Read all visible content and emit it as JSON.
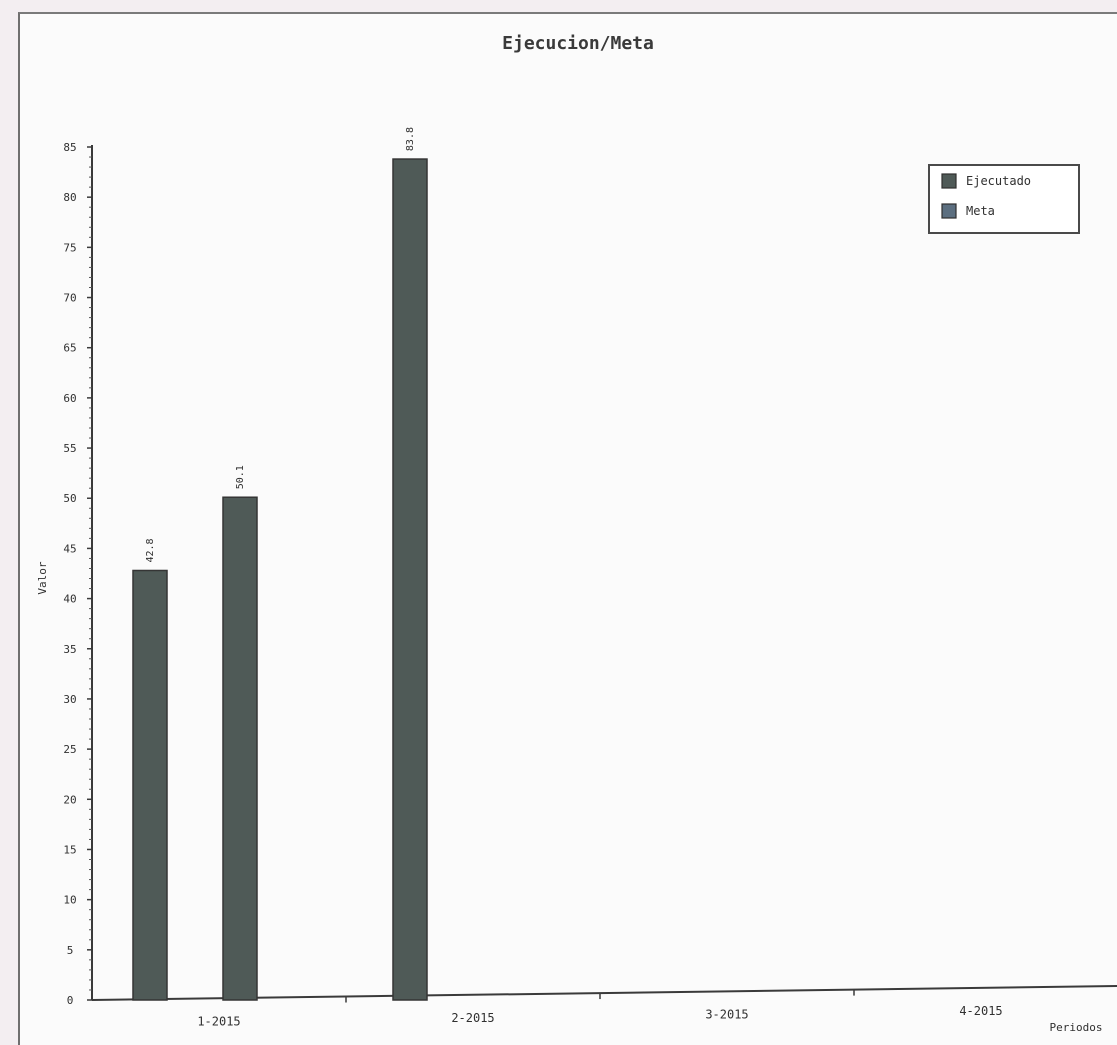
{
  "chart_data": {
    "type": "bar",
    "title": "Ejecucion/Meta",
    "xlabel": "Periodos",
    "ylabel": "Valor",
    "categories": [
      "1-2015",
      "2-2015",
      "3-2015",
      "4-2015"
    ],
    "series": [
      {
        "name": "Ejecutado",
        "values": [
          42.8,
          50.1,
          83.8,
          null
        ],
        "labels": [
          "42.8",
          "50.1",
          "83.8",
          ""
        ]
      },
      {
        "name": "Meta",
        "values": [
          null,
          null,
          null,
          null
        ],
        "labels": [
          "",
          "",
          "",
          ""
        ]
      }
    ],
    "ylim": [
      0,
      85
    ],
    "yticks": [
      0,
      5,
      10,
      15,
      20,
      25,
      30,
      35,
      40,
      45,
      50,
      55,
      60,
      65,
      70,
      75,
      80,
      85
    ],
    "grid": false,
    "legend_position": "top-right",
    "colors": {
      "Ejecutado": "#4f5a57",
      "Meta": "#5c6f80",
      "bar_edge": "#353535"
    }
  }
}
